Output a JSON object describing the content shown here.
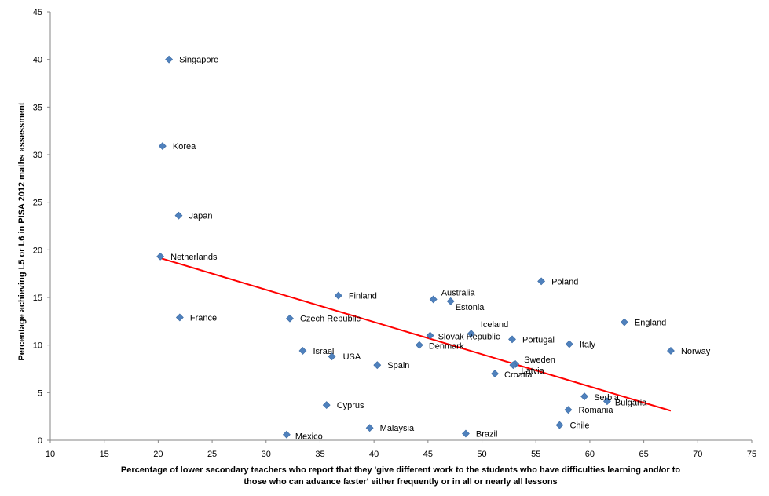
{
  "chart_data": {
    "type": "scatter",
    "xlabel_line1": "Percentage of lower secondary  teachers who report that they 'give different work to the students who have difficulties learning and/or to",
    "xlabel_line2": "those who can advance faster' either frequently or in all or nearly all  lessons",
    "ylabel": "Percentage achieving  L5 or L6 in  PISA  2012 maths assessment",
    "xlim": [
      10,
      75
    ],
    "ylim": [
      0,
      45
    ],
    "xticks": [
      10,
      15,
      20,
      25,
      30,
      35,
      40,
      45,
      50,
      55,
      60,
      65,
      70,
      75
    ],
    "yticks": [
      0,
      5,
      10,
      15,
      20,
      25,
      30,
      35,
      40,
      45
    ],
    "grid": false,
    "marker_color": "#4F81BD",
    "trendline_color": "#FF0000",
    "trendline": {
      "x": [
        20.0,
        67.5
      ],
      "y": [
        19.2,
        3.1
      ]
    },
    "points": [
      {
        "label": "Singapore",
        "x": 21.0,
        "y": 40.0
      },
      {
        "label": "Korea",
        "x": 20.4,
        "y": 30.9
      },
      {
        "label": "Japan",
        "x": 21.9,
        "y": 23.6
      },
      {
        "label": "Netherlands",
        "x": 20.2,
        "y": 19.3
      },
      {
        "label": "France",
        "x": 22.0,
        "y": 12.9
      },
      {
        "label": "Czech Republic",
        "x": 32.2,
        "y": 12.8
      },
      {
        "label": "Finland",
        "x": 36.7,
        "y": 15.2
      },
      {
        "label": "Israel",
        "x": 33.4,
        "y": 9.4
      },
      {
        "label": "USA",
        "x": 36.1,
        "y": 8.8
      },
      {
        "label": "Spain",
        "x": 40.3,
        "y": 7.9
      },
      {
        "label": "Cyprus",
        "x": 35.6,
        "y": 3.7
      },
      {
        "label": "Mexico",
        "x": 31.9,
        "y": 0.6
      },
      {
        "label": "Malaysia",
        "x": 39.6,
        "y": 1.3
      },
      {
        "label": "Australia",
        "x": 45.5,
        "y": 14.8
      },
      {
        "label": "Estonia",
        "x": 47.1,
        "y": 14.6
      },
      {
        "label": "Slovak Republic",
        "x": 45.2,
        "y": 11.0
      },
      {
        "label": "Denmark",
        "x": 44.2,
        "y": 10.0
      },
      {
        "label": "Iceland",
        "x": 49.0,
        "y": 11.2
      },
      {
        "label": "Portugal",
        "x": 52.8,
        "y": 10.6
      },
      {
        "label": "Poland",
        "x": 55.5,
        "y": 16.7
      },
      {
        "label": "Italy",
        "x": 58.1,
        "y": 10.1
      },
      {
        "label": "England",
        "x": 63.2,
        "y": 12.4
      },
      {
        "label": "Norway",
        "x": 67.5,
        "y": 9.4
      },
      {
        "label": "Sweden",
        "x": 53.1,
        "y": 8.0
      },
      {
        "label": "Latvia",
        "x": 52.9,
        "y": 7.9
      },
      {
        "label": "Croatia",
        "x": 51.2,
        "y": 7.0
      },
      {
        "label": "Serbia",
        "x": 59.5,
        "y": 4.6
      },
      {
        "label": "Bulgaria",
        "x": 61.6,
        "y": 4.1
      },
      {
        "label": "Romania",
        "x": 58.0,
        "y": 3.2
      },
      {
        "label": "Chile",
        "x": 57.2,
        "y": 1.6
      },
      {
        "label": "Brazil",
        "x": 48.5,
        "y": 0.7
      }
    ]
  }
}
